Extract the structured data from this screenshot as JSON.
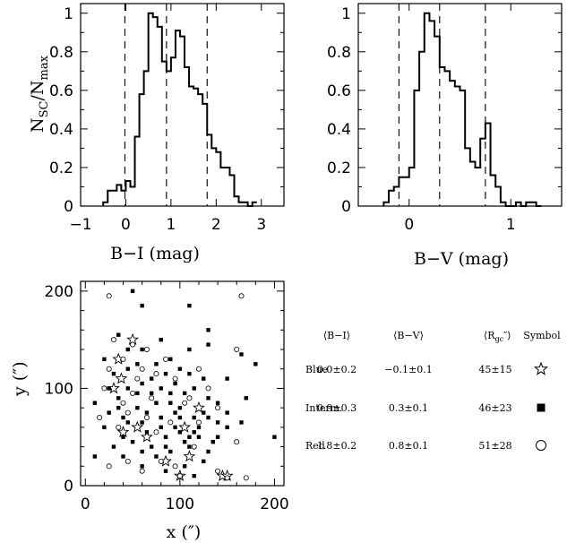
{
  "chart_data": [
    {
      "type": "histogram",
      "xlabel": "B−I (mag)",
      "ylabel_main": "N",
      "ylabel_sub1": "SC",
      "ylabel_mid": "/N",
      "ylabel_sub2": "max",
      "xlim": [
        -1,
        3.5
      ],
      "ylim": [
        0,
        1.05
      ],
      "xticks": [
        "−1",
        "0",
        "1",
        "2",
        "3"
      ],
      "yticks": [
        "0",
        "0.2",
        "0.4",
        "0.6",
        "0.8",
        "1"
      ],
      "bin_edges": [
        -0.5,
        -0.4,
        -0.3,
        -0.2,
        -0.1,
        0,
        0.1,
        0.2,
        0.3,
        0.4,
        0.5,
        0.6,
        0.7,
        0.8,
        0.9,
        1.0,
        1.1,
        1.2,
        1.3,
        1.4,
        1.5,
        1.6,
        1.7,
        1.8,
        1.9,
        2.0,
        2.1,
        2.2,
        2.3,
        2.4,
        2.5,
        2.6,
        2.7,
        2.8,
        2.9
      ],
      "counts": [
        0.02,
        0.08,
        0.08,
        0.11,
        0.08,
        0.13,
        0.1,
        0.36,
        0.58,
        0.7,
        1.0,
        0.98,
        0.93,
        0.75,
        0.7,
        0.77,
        0.91,
        0.88,
        0.72,
        0.62,
        0.61,
        0.58,
        0.53,
        0.37,
        0.3,
        0.28,
        0.2,
        0.2,
        0.16,
        0.05,
        0.02,
        0.02,
        0.0,
        0.02
      ],
      "dashed_lines": [
        -0.02,
        0.9,
        1.8
      ]
    },
    {
      "type": "histogram",
      "xlabel": "B−V (mag)",
      "xlim": [
        -0.5,
        1.5
      ],
      "ylim": [
        0,
        1.05
      ],
      "xticks": [
        "0",
        "1"
      ],
      "yticks": [
        "0",
        "0.2",
        "0.4",
        "0.6",
        "0.8",
        "1"
      ],
      "bin_edges": [
        -0.25,
        -0.2,
        -0.15,
        -0.1,
        -0.05,
        0,
        0.05,
        0.1,
        0.15,
        0.2,
        0.25,
        0.3,
        0.35,
        0.4,
        0.45,
        0.5,
        0.55,
        0.6,
        0.65,
        0.7,
        0.75,
        0.8,
        0.85,
        0.9,
        0.95,
        1.0,
        1.05,
        1.1,
        1.15,
        1.2,
        1.25,
        1.3
      ],
      "counts": [
        0.02,
        0.08,
        0.1,
        0.15,
        0.15,
        0.2,
        0.6,
        0.8,
        1.0,
        0.96,
        0.88,
        0.72,
        0.7,
        0.65,
        0.62,
        0.6,
        0.3,
        0.23,
        0.2,
        0.35,
        0.43,
        0.16,
        0.1,
        0.02,
        0.0,
        0.0,
        0.02,
        0.0,
        0.02,
        0.02,
        0.0
      ],
      "dashed_lines": [
        -0.1,
        0.3,
        0.75
      ]
    },
    {
      "type": "scatter",
      "xlabel": "x (″)",
      "ylabel": "y (″)",
      "xlim": [
        -5,
        210
      ],
      "ylim": [
        0,
        210
      ],
      "xticks": [
        "0",
        "100",
        "200"
      ],
      "yticks": [
        "0",
        "100",
        "200"
      ],
      "series": [
        {
          "name": "Blue",
          "marker": "star",
          "points": [
            [
              50,
              150
            ],
            [
              35,
              130
            ],
            [
              38,
              110
            ],
            [
              30,
              100
            ],
            [
              40,
              55
            ],
            [
              55,
              60
            ],
            [
              85,
              25
            ],
            [
              100,
              10
            ],
            [
              105,
              60
            ],
            [
              110,
              30
            ],
            [
              145,
              10
            ],
            [
              65,
              50
            ],
            [
              120,
              80
            ],
            [
              150,
              10
            ]
          ]
        },
        {
          "name": "Interm.",
          "marker": "square",
          "points": [
            [
              50,
              200
            ],
            [
              60,
              185
            ],
            [
              110,
              185
            ],
            [
              130,
              160
            ],
            [
              35,
              155
            ],
            [
              45,
              140
            ],
            [
              20,
              130
            ],
            [
              60,
              140
            ],
            [
              80,
              150
            ],
            [
              110,
              140
            ],
            [
              130,
              145
            ],
            [
              165,
              135
            ],
            [
              180,
              125
            ],
            [
              25,
              100
            ],
            [
              45,
              100
            ],
            [
              70,
              110
            ],
            [
              90,
              95
            ],
            [
              100,
              120
            ],
            [
              115,
              100
            ],
            [
              130,
              90
            ],
            [
              150,
              110
            ],
            [
              170,
              90
            ],
            [
              10,
              85
            ],
            [
              35,
              80
            ],
            [
              55,
              80
            ],
            [
              75,
              85
            ],
            [
              95,
              75
            ],
            [
              115,
              70
            ],
            [
              130,
              70
            ],
            [
              150,
              75
            ],
            [
              20,
              60
            ],
            [
              40,
              70
            ],
            [
              60,
              65
            ],
            [
              80,
              60
            ],
            [
              100,
              55
            ],
            [
              120,
              50
            ],
            [
              140,
              50
            ],
            [
              165,
              65
            ],
            [
              200,
              50
            ],
            [
              30,
              40
            ],
            [
              50,
              45
            ],
            [
              70,
              40
            ],
            [
              90,
              35
            ],
            [
              110,
              40
            ],
            [
              130,
              35
            ],
            [
              10,
              30
            ],
            [
              40,
              30
            ],
            [
              60,
              20
            ],
            [
              85,
              15
            ],
            [
              105,
              20
            ],
            [
              125,
              25
            ],
            [
              115,
              10
            ],
            [
              70,
              95
            ],
            [
              90,
              130
            ],
            [
              45,
              120
            ],
            [
              60,
              105
            ],
            [
              85,
              115
            ],
            [
              105,
              95
            ],
            [
              125,
              110
            ],
            [
              30,
              115
            ],
            [
              75,
              125
            ],
            [
              95,
              105
            ],
            [
              140,
              85
            ],
            [
              55,
              95
            ],
            [
              80,
              70
            ],
            [
              100,
              80
            ],
            [
              120,
              60
            ],
            [
              150,
              60
            ],
            [
              40,
              50
            ],
            [
              65,
              75
            ],
            [
              85,
              50
            ],
            [
              105,
              45
            ],
            [
              135,
              45
            ],
            [
              25,
              75
            ],
            [
              75,
              30
            ],
            [
              95,
              60
            ],
            [
              115,
              55
            ],
            [
              35,
              90
            ],
            [
              55,
              125
            ],
            [
              80,
              100
            ],
            [
              110,
              115
            ],
            [
              125,
              75
            ],
            [
              45,
              65
            ],
            [
              65,
              55
            ],
            [
              90,
              85
            ],
            [
              100,
              70
            ],
            [
              140,
              65
            ],
            [
              60,
              35
            ],
            [
              85,
              40
            ],
            [
              110,
              50
            ]
          ]
        },
        {
          "name": "Red",
          "marker": "circle",
          "points": [
            [
              25,
              195
            ],
            [
              165,
              195
            ],
            [
              30,
              150
            ],
            [
              50,
              145
            ],
            [
              40,
              130
            ],
            [
              25,
              120
            ],
            [
              60,
              120
            ],
            [
              75,
              115
            ],
            [
              120,
              120
            ],
            [
              130,
              100
            ],
            [
              160,
              140
            ],
            [
              20,
              100
            ],
            [
              50,
              95
            ],
            [
              70,
              90
            ],
            [
              95,
              110
            ],
            [
              110,
              90
            ],
            [
              140,
              80
            ],
            [
              15,
              70
            ],
            [
              45,
              75
            ],
            [
              65,
              70
            ],
            [
              90,
              65
            ],
            [
              120,
              65
            ],
            [
              160,
              45
            ],
            [
              25,
              20
            ],
            [
              45,
              25
            ],
            [
              60,
              15
            ],
            [
              80,
              25
            ],
            [
              95,
              20
            ],
            [
              100,
              10
            ],
            [
              140,
              15
            ],
            [
              150,
              8
            ],
            [
              170,
              8
            ],
            [
              75,
              55
            ],
            [
              105,
              85
            ],
            [
              55,
              110
            ],
            [
              85,
              130
            ],
            [
              35,
              60
            ],
            [
              115,
              40
            ],
            [
              65,
              140
            ],
            [
              40,
              85
            ]
          ]
        }
      ]
    }
  ],
  "legend_table": {
    "headers": [
      "⟨B−I⟩",
      "⟨B−V⟩",
      "⟨R",
      "gc",
      "″⟩",
      "Symbol"
    ],
    "rows": [
      {
        "label": "Blue",
        "bi": "0.0±0.2",
        "bv": "−0.1±0.1",
        "r": "45±15",
        "symbol": "star"
      },
      {
        "label": "Interm.",
        "bi": "0.9±0.3",
        "bv": "0.3±0.1",
        "r": "46±23",
        "symbol": "square"
      },
      {
        "label": "Red",
        "bi": "1.8±0.2",
        "bv": "0.8±0.1",
        "r": "51±28",
        "symbol": "circle"
      }
    ]
  }
}
